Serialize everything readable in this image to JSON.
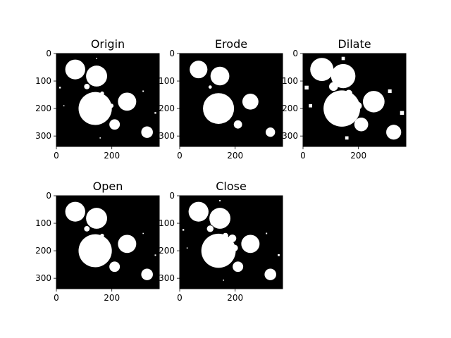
{
  "chart_data": [
    {
      "type": "image",
      "title": "Origin",
      "xticks": [
        0,
        200
      ],
      "yticks": [
        0,
        100,
        200,
        300
      ],
      "xlim": [
        0,
        371
      ],
      "ylim": [
        338,
        0
      ],
      "grid": false,
      "blobs": [
        {
          "x": 68,
          "y": 58,
          "r": 36
        },
        {
          "x": 145,
          "y": 82,
          "r": 38
        },
        {
          "x": 140,
          "y": 200,
          "r": 60
        },
        {
          "x": 198,
          "y": 190,
          "r": 8
        },
        {
          "x": 255,
          "y": 175,
          "r": 33
        },
        {
          "x": 210,
          "y": 258,
          "r": 19
        },
        {
          "x": 327,
          "y": 286,
          "r": 21
        },
        {
          "x": 110,
          "y": 120,
          "r": 10
        },
        {
          "x": 118,
          "y": 100,
          "r": 5
        },
        {
          "x": 165,
          "y": 145,
          "r": 7
        }
      ],
      "specks": [
        {
          "x": 13,
          "y": 124,
          "s": 6
        },
        {
          "x": 27,
          "y": 190,
          "s": 4
        },
        {
          "x": 145,
          "y": 18,
          "s": 4
        },
        {
          "x": 313,
          "y": 137,
          "s": 5
        },
        {
          "x": 357,
          "y": 216,
          "s": 6
        },
        {
          "x": 158,
          "y": 307,
          "s": 4
        }
      ]
    },
    {
      "type": "image",
      "title": "Erode",
      "xticks": [
        0,
        200
      ],
      "yticks": [
        0,
        100,
        200,
        300
      ],
      "xlim": [
        0,
        371
      ],
      "ylim": [
        338,
        0
      ],
      "grid": false,
      "blobs": [
        {
          "x": 68,
          "y": 58,
          "r": 32
        },
        {
          "x": 145,
          "y": 82,
          "r": 34
        },
        {
          "x": 140,
          "y": 200,
          "r": 56
        },
        {
          "x": 255,
          "y": 175,
          "r": 29
        },
        {
          "x": 210,
          "y": 258,
          "r": 15
        },
        {
          "x": 327,
          "y": 286,
          "r": 17
        },
        {
          "x": 110,
          "y": 122,
          "r": 6
        }
      ],
      "specks": []
    },
    {
      "type": "image",
      "title": "Dilate",
      "xticks": [
        0,
        200
      ],
      "yticks": [
        0,
        100,
        200,
        300
      ],
      "xlim": [
        0,
        371
      ],
      "ylim": [
        338,
        0
      ],
      "grid": false,
      "blobs": [
        {
          "x": 68,
          "y": 58,
          "r": 42
        },
        {
          "x": 145,
          "y": 82,
          "r": 44
        },
        {
          "x": 140,
          "y": 200,
          "r": 66
        },
        {
          "x": 198,
          "y": 190,
          "r": 14
        },
        {
          "x": 255,
          "y": 175,
          "r": 39
        },
        {
          "x": 210,
          "y": 258,
          "r": 25
        },
        {
          "x": 327,
          "y": 286,
          "r": 27
        },
        {
          "x": 110,
          "y": 120,
          "r": 16
        },
        {
          "x": 118,
          "y": 100,
          "r": 11
        },
        {
          "x": 165,
          "y": 145,
          "r": 13
        }
      ],
      "specks": [
        {
          "x": 13,
          "y": 124,
          "s": 14
        },
        {
          "x": 27,
          "y": 190,
          "s": 12
        },
        {
          "x": 145,
          "y": 18,
          "s": 12
        },
        {
          "x": 313,
          "y": 137,
          "s": 13
        },
        {
          "x": 357,
          "y": 216,
          "s": 14
        },
        {
          "x": 158,
          "y": 307,
          "s": 12
        }
      ]
    },
    {
      "type": "image",
      "title": "Open",
      "xticks": [
        0,
        200
      ],
      "yticks": [
        0,
        100,
        200,
        300
      ],
      "xlim": [
        0,
        371
      ],
      "ylim": [
        338,
        0
      ],
      "grid": false,
      "blobs": [
        {
          "x": 68,
          "y": 58,
          "r": 36
        },
        {
          "x": 145,
          "y": 82,
          "r": 38
        },
        {
          "x": 140,
          "y": 200,
          "r": 60
        },
        {
          "x": 255,
          "y": 175,
          "r": 33
        },
        {
          "x": 210,
          "y": 258,
          "r": 19
        },
        {
          "x": 327,
          "y": 286,
          "r": 21
        },
        {
          "x": 110,
          "y": 120,
          "r": 10
        },
        {
          "x": 165,
          "y": 145,
          "r": 7
        }
      ],
      "specks": [
        {
          "x": 313,
          "y": 137,
          "s": 4
        },
        {
          "x": 357,
          "y": 216,
          "s": 5
        }
      ]
    },
    {
      "type": "image",
      "title": "Close",
      "xticks": [
        0,
        200
      ],
      "yticks": [
        0,
        100,
        200,
        300
      ],
      "xlim": [
        0,
        371
      ],
      "ylim": [
        338,
        0
      ],
      "grid": false,
      "blobs": [
        {
          "x": 68,
          "y": 58,
          "r": 36
        },
        {
          "x": 145,
          "y": 82,
          "r": 38
        },
        {
          "x": 140,
          "y": 200,
          "r": 62
        },
        {
          "x": 198,
          "y": 190,
          "r": 12
        },
        {
          "x": 255,
          "y": 175,
          "r": 33
        },
        {
          "x": 210,
          "y": 258,
          "r": 19
        },
        {
          "x": 327,
          "y": 286,
          "r": 21
        },
        {
          "x": 110,
          "y": 120,
          "r": 12
        },
        {
          "x": 118,
          "y": 100,
          "r": 7
        },
        {
          "x": 165,
          "y": 145,
          "r": 10
        },
        {
          "x": 190,
          "y": 155,
          "r": 14
        }
      ],
      "specks": [
        {
          "x": 13,
          "y": 124,
          "s": 6
        },
        {
          "x": 27,
          "y": 190,
          "s": 4
        },
        {
          "x": 145,
          "y": 18,
          "s": 5
        },
        {
          "x": 313,
          "y": 137,
          "s": 5
        },
        {
          "x": 357,
          "y": 216,
          "s": 7
        },
        {
          "x": 158,
          "y": 307,
          "s": 4
        }
      ]
    }
  ]
}
